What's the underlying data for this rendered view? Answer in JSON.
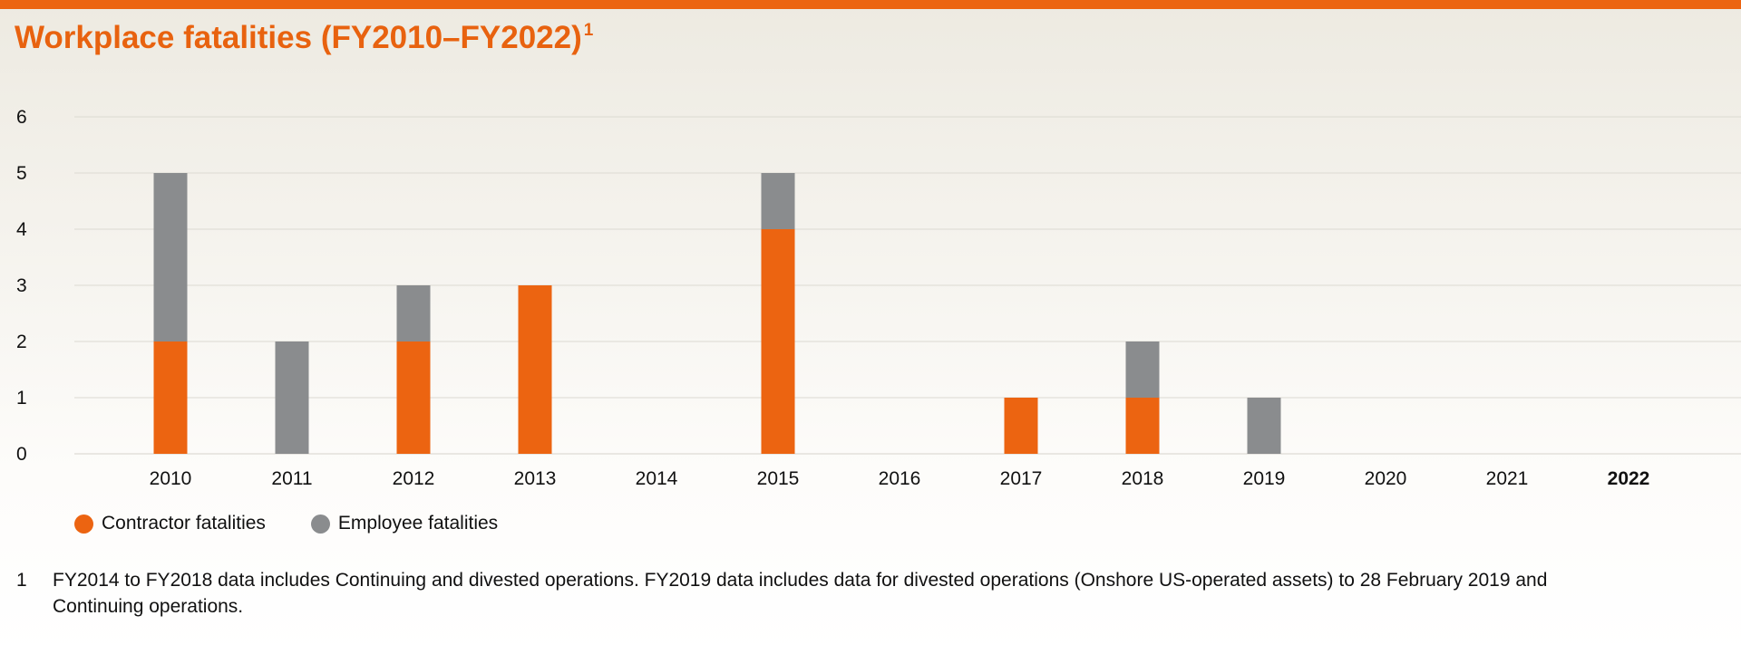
{
  "header": {
    "title": "Workplace fatalities (FY2010–FY2022)",
    "title_footnote_mark": "1"
  },
  "colors": {
    "accent": "#ec6411",
    "contractor": "#ec6411",
    "employee": "#8a8c8e"
  },
  "chart_data": {
    "type": "bar",
    "stacked": true,
    "categories": [
      "2010",
      "2011",
      "2012",
      "2013",
      "2014",
      "2015",
      "2016",
      "2017",
      "2018",
      "2019",
      "2020",
      "2021",
      "2022"
    ],
    "highlighted_category": "2022",
    "series": [
      {
        "name": "Contractor fatalities",
        "color": "#ec6411",
        "values": [
          2,
          0,
          2,
          3,
          0,
          4,
          0,
          1,
          1,
          0,
          0,
          0,
          0
        ]
      },
      {
        "name": "Employee fatalities",
        "color": "#8a8c8e",
        "values": [
          3,
          2,
          1,
          0,
          0,
          1,
          0,
          0,
          1,
          1,
          0,
          0,
          0
        ]
      }
    ],
    "yticks": [
      "0",
      "1",
      "2",
      "3",
      "4",
      "5",
      "6"
    ],
    "ylim": [
      0,
      6
    ],
    "grid": true,
    "legend_position": "bottom-left"
  },
  "legend": {
    "items": [
      {
        "label": "Contractor fatalities",
        "color": "#ec6411"
      },
      {
        "label": "Employee fatalities",
        "color": "#8a8c8e"
      }
    ]
  },
  "footnote": {
    "mark": "1",
    "text": "FY2014 to FY2018 data includes Continuing and divested operations. FY2019 data includes data for divested operations (Onshore US-operated assets) to 28 February 2019 and Continuing operations."
  }
}
